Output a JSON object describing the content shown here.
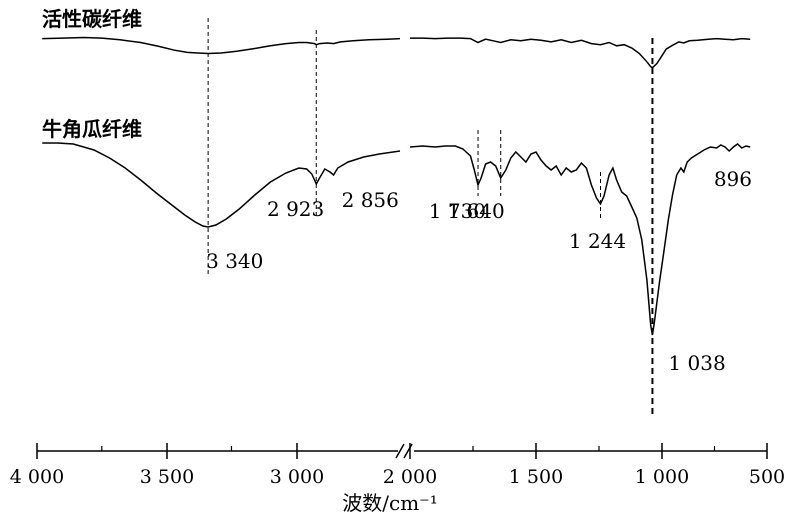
{
  "chart_data": {
    "type": "line",
    "title": "",
    "xlabel": "波数/cm⁻¹",
    "ylabel": "",
    "xlim": [
      4000,
      500
    ],
    "x_axis_break": [
      2600,
      2000
    ],
    "grid": false,
    "x_ticks": [
      {
        "value": 4000,
        "label": "4 000"
      },
      {
        "value": 3500,
        "label": "3 500"
      },
      {
        "value": 3000,
        "label": "3 000"
      },
      {
        "value": 2000,
        "label": "2 000"
      },
      {
        "value": 1500,
        "label": "1 500"
      },
      {
        "value": 1000,
        "label": "1 000"
      },
      {
        "value": 500,
        "label": "500"
      }
    ],
    "series": [
      {
        "name": "活性碳纤维",
        "color": "#000000",
        "points": [
          [
            3980,
            0.97
          ],
          [
            3900,
            0.98
          ],
          [
            3820,
            0.99
          ],
          [
            3750,
            0.98
          ],
          [
            3680,
            0.95
          ],
          [
            3600,
            0.9
          ],
          [
            3530,
            0.83
          ],
          [
            3470,
            0.76
          ],
          [
            3420,
            0.72
          ],
          [
            3380,
            0.71
          ],
          [
            3340,
            0.7
          ],
          [
            3290,
            0.71
          ],
          [
            3230,
            0.74
          ],
          [
            3160,
            0.79
          ],
          [
            3100,
            0.84
          ],
          [
            3040,
            0.88
          ],
          [
            2990,
            0.9
          ],
          [
            2960,
            0.9
          ],
          [
            2930,
            0.88
          ],
          [
            2923,
            0.86
          ],
          [
            2910,
            0.88
          ],
          [
            2880,
            0.89
          ],
          [
            2856,
            0.88
          ],
          [
            2830,
            0.91
          ],
          [
            2780,
            0.93
          ],
          [
            2720,
            0.95
          ],
          [
            2650,
            0.96
          ],
          [
            2600,
            0.97
          ],
          [
            2000,
            0.98
          ],
          [
            1950,
            0.98
          ],
          [
            1900,
            0.97
          ],
          [
            1850,
            0.98
          ],
          [
            1800,
            0.98
          ],
          [
            1760,
            0.97
          ],
          [
            1730,
            0.9
          ],
          [
            1700,
            0.96
          ],
          [
            1670,
            0.93
          ],
          [
            1640,
            0.9
          ],
          [
            1600,
            0.95
          ],
          [
            1560,
            0.93
          ],
          [
            1520,
            0.96
          ],
          [
            1480,
            0.94
          ],
          [
            1440,
            0.91
          ],
          [
            1400,
            0.95
          ],
          [
            1360,
            0.9
          ],
          [
            1320,
            0.94
          ],
          [
            1280,
            0.88
          ],
          [
            1244,
            0.86
          ],
          [
            1210,
            0.9
          ],
          [
            1180,
            0.84
          ],
          [
            1150,
            0.86
          ],
          [
            1120,
            0.8
          ],
          [
            1090,
            0.7
          ],
          [
            1060,
            0.55
          ],
          [
            1045,
            0.46
          ],
          [
            1038,
            0.44
          ],
          [
            1020,
            0.52
          ],
          [
            1000,
            0.66
          ],
          [
            980,
            0.78
          ],
          [
            950,
            0.85
          ],
          [
            920,
            0.91
          ],
          [
            896,
            0.89
          ],
          [
            870,
            0.93
          ],
          [
            830,
            0.94
          ],
          [
            780,
            0.96
          ],
          [
            740,
            0.97
          ],
          [
            700,
            0.96
          ],
          [
            660,
            0.95
          ],
          [
            620,
            0.97
          ],
          [
            580,
            0.96
          ]
        ]
      },
      {
        "name": "牛角瓜纤维",
        "color": "#000000",
        "points": [
          [
            3980,
            0.97
          ],
          [
            3920,
            0.97
          ],
          [
            3860,
            0.96
          ],
          [
            3780,
            0.9
          ],
          [
            3720,
            0.82
          ],
          [
            3660,
            0.72
          ],
          [
            3600,
            0.6
          ],
          [
            3540,
            0.47
          ],
          [
            3480,
            0.35
          ],
          [
            3430,
            0.25
          ],
          [
            3390,
            0.18
          ],
          [
            3360,
            0.14
          ],
          [
            3340,
            0.13
          ],
          [
            3310,
            0.15
          ],
          [
            3270,
            0.21
          ],
          [
            3220,
            0.31
          ],
          [
            3160,
            0.45
          ],
          [
            3100,
            0.58
          ],
          [
            3040,
            0.67
          ],
          [
            2990,
            0.72
          ],
          [
            2960,
            0.71
          ],
          [
            2940,
            0.66
          ],
          [
            2923,
            0.56
          ],
          [
            2910,
            0.62
          ],
          [
            2890,
            0.71
          ],
          [
            2870,
            0.68
          ],
          [
            2856,
            0.65
          ],
          [
            2840,
            0.72
          ],
          [
            2800,
            0.78
          ],
          [
            2740,
            0.83
          ],
          [
            2680,
            0.86
          ],
          [
            2600,
            0.89
          ],
          [
            2000,
            0.93
          ],
          [
            1950,
            0.94
          ],
          [
            1900,
            0.93
          ],
          [
            1860,
            0.94
          ],
          [
            1820,
            0.94
          ],
          [
            1790,
            0.91
          ],
          [
            1760,
            0.84
          ],
          [
            1745,
            0.7
          ],
          [
            1730,
            0.55
          ],
          [
            1718,
            0.62
          ],
          [
            1700,
            0.76
          ],
          [
            1680,
            0.78
          ],
          [
            1660,
            0.74
          ],
          [
            1640,
            0.62
          ],
          [
            1620,
            0.7
          ],
          [
            1600,
            0.82
          ],
          [
            1580,
            0.88
          ],
          [
            1560,
            0.83
          ],
          [
            1540,
            0.78
          ],
          [
            1520,
            0.86
          ],
          [
            1500,
            0.88
          ],
          [
            1480,
            0.8
          ],
          [
            1460,
            0.74
          ],
          [
            1440,
            0.7
          ],
          [
            1420,
            0.74
          ],
          [
            1400,
            0.65
          ],
          [
            1380,
            0.72
          ],
          [
            1360,
            0.68
          ],
          [
            1340,
            0.7
          ],
          [
            1320,
            0.77
          ],
          [
            1300,
            0.72
          ],
          [
            1280,
            0.55
          ],
          [
            1260,
            0.42
          ],
          [
            1244,
            0.36
          ],
          [
            1230,
            0.44
          ],
          [
            1210,
            0.65
          ],
          [
            1195,
            0.72
          ],
          [
            1180,
            0.6
          ],
          [
            1160,
            0.48
          ],
          [
            1140,
            0.44
          ],
          [
            1120,
            0.33
          ],
          [
            1100,
            0.22
          ],
          [
            1080,
            0.0
          ],
          [
            1060,
            -0.4
          ],
          [
            1045,
            -0.85
          ],
          [
            1038,
            -0.95
          ],
          [
            1030,
            -0.82
          ],
          [
            1010,
            -0.42
          ],
          [
            990,
            -0.1
          ],
          [
            970,
            0.2
          ],
          [
            950,
            0.45
          ],
          [
            930,
            0.65
          ],
          [
            910,
            0.72
          ],
          [
            896,
            0.68
          ],
          [
            880,
            0.78
          ],
          [
            860,
            0.82
          ],
          [
            830,
            0.86
          ],
          [
            800,
            0.9
          ],
          [
            770,
            0.93
          ],
          [
            740,
            0.92
          ],
          [
            720,
            0.95
          ],
          [
            700,
            0.93
          ],
          [
            680,
            0.89
          ],
          [
            660,
            0.93
          ],
          [
            640,
            0.96
          ],
          [
            620,
            0.92
          ],
          [
            600,
            0.94
          ],
          [
            580,
            0.93
          ]
        ]
      }
    ],
    "peak_labels": [
      {
        "series": "牛角瓜纤维",
        "x": 3340,
        "label": "3 340"
      },
      {
        "series": "牛角瓜纤维",
        "x": 2923,
        "label": "2 923"
      },
      {
        "series": "牛角瓜纤维",
        "x": 2856,
        "label": "2 856"
      },
      {
        "series": "牛角瓜纤维",
        "x": 1730,
        "label": "1 730"
      },
      {
        "series": "牛角瓜纤维",
        "x": 1640,
        "label": "1 640"
      },
      {
        "series": "牛角瓜纤维",
        "x": 1244,
        "label": "1 244"
      },
      {
        "series": "牛角瓜纤维",
        "x": 1038,
        "label": "1 038"
      },
      {
        "series": "牛角瓜纤维",
        "x": 896,
        "label": "896"
      }
    ],
    "reference_lines": [
      3340,
      2923,
      1730,
      1640,
      1244,
      1038
    ]
  }
}
